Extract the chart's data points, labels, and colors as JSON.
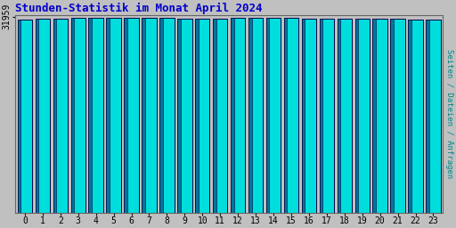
{
  "title": "Stunden-Statistik im Monat April 2024",
  "title_color": "#0000cc",
  "ylabel": "Seiten / Dateien / Anfragen",
  "ylabel_color": "#008888",
  "ytick_label": "31959",
  "background_color": "#c0c0c0",
  "plot_bg_color": "#c0c0c0",
  "bar_face_color": "#00dddd",
  "bar_edge_color": "#000044",
  "bar_shade_color": "#007799",
  "categories": [
    0,
    1,
    2,
    3,
    4,
    5,
    6,
    7,
    8,
    9,
    10,
    11,
    12,
    13,
    14,
    15,
    16,
    17,
    18,
    19,
    20,
    21,
    22,
    23
  ],
  "bar_heights": [
    31500,
    31600,
    31650,
    31700,
    31750,
    31780,
    31720,
    31720,
    31720,
    31580,
    31590,
    31590,
    31750,
    31820,
    31820,
    31800,
    31640,
    31560,
    31560,
    31590,
    31570,
    31570,
    31480,
    31450
  ],
  "ymin": 0,
  "ymax": 32200,
  "ytick_pos": 31959,
  "font_family": "monospace",
  "title_fontsize": 9,
  "tick_fontsize": 7,
  "ylabel_fontsize": 6.5
}
